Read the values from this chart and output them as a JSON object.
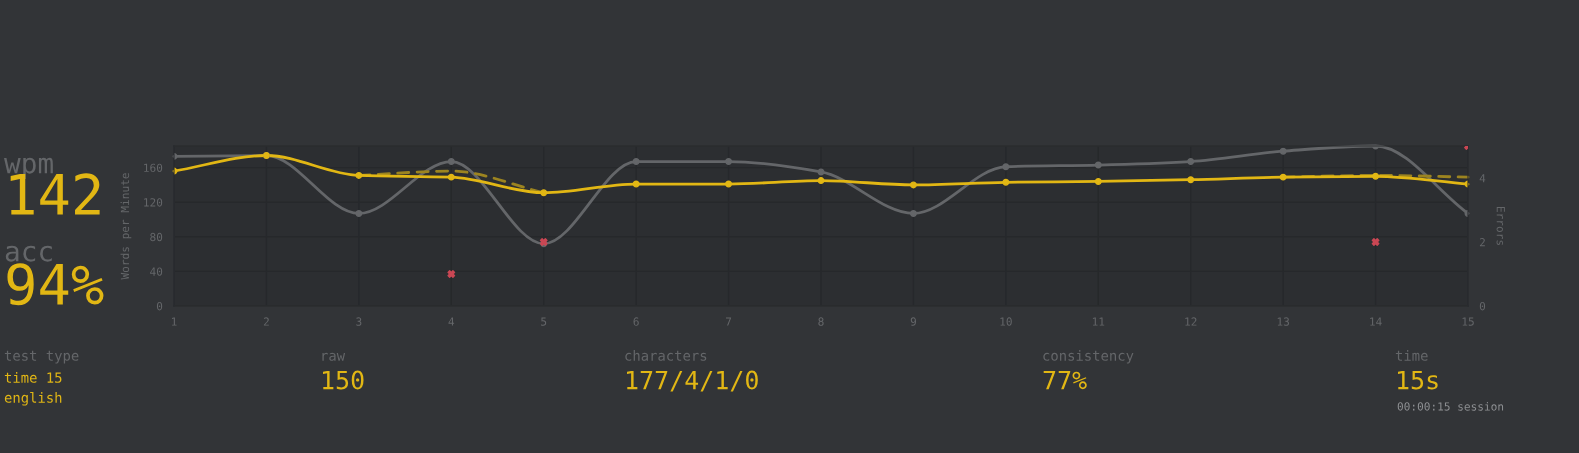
{
  "chart_data": {
    "type": "line",
    "ylabel": "Words per Minute",
    "y2label": "Errors",
    "x": [
      1,
      2,
      3,
      4,
      5,
      6,
      7,
      8,
      9,
      10,
      11,
      12,
      13,
      14,
      15
    ],
    "xlim": [
      1,
      15
    ],
    "xticks": [
      1,
      2,
      3,
      4,
      5,
      6,
      7,
      8,
      9,
      10,
      11,
      12,
      13,
      14,
      15
    ],
    "ylim": [
      0,
      185
    ],
    "yticks": [
      0,
      40,
      80,
      120,
      160
    ],
    "y2lim": [
      0,
      5
    ],
    "y2ticks": [
      0,
      2,
      4
    ],
    "grid": true,
    "marker": "circle",
    "series": [
      {
        "color": "#646669",
        "values": [
          173,
          174,
          107,
          167,
          72,
          167,
          167,
          155,
          107,
          161,
          163,
          167,
          179,
          185,
          107
        ]
      },
      {
        "color": "#9c8420",
        "line_style": "dashed",
        "marker": "none",
        "x": [
          3,
          4,
          5
        ],
        "values": [
          151,
          156,
          131
        ]
      },
      {
        "color": "#9c8420",
        "line_style": "dashed",
        "marker": "none",
        "x": [
          13,
          14,
          15
        ],
        "values": [
          149,
          151,
          149
        ]
      },
      {
        "color": "#e2b714",
        "values": [
          156,
          174,
          151,
          149,
          131,
          141,
          141,
          145,
          140,
          143,
          144,
          146,
          149,
          150,
          141
        ]
      },
      {
        "type": "scatter",
        "axis": "y2",
        "marker": "cross",
        "color": "#ca4754",
        "values": [
          null,
          null,
          null,
          1,
          2,
          null,
          null,
          null,
          null,
          null,
          null,
          null,
          null,
          2,
          5
        ]
      }
    ],
    "annotations": [
      "wpm",
      "142",
      "acc",
      "94%",
      "test type",
      "time 15",
      "english",
      "raw",
      "150",
      "characters",
      "177/4/1/0",
      "consistency",
      "77%",
      "time",
      "15s",
      "00:00:15 session"
    ]
  }
}
